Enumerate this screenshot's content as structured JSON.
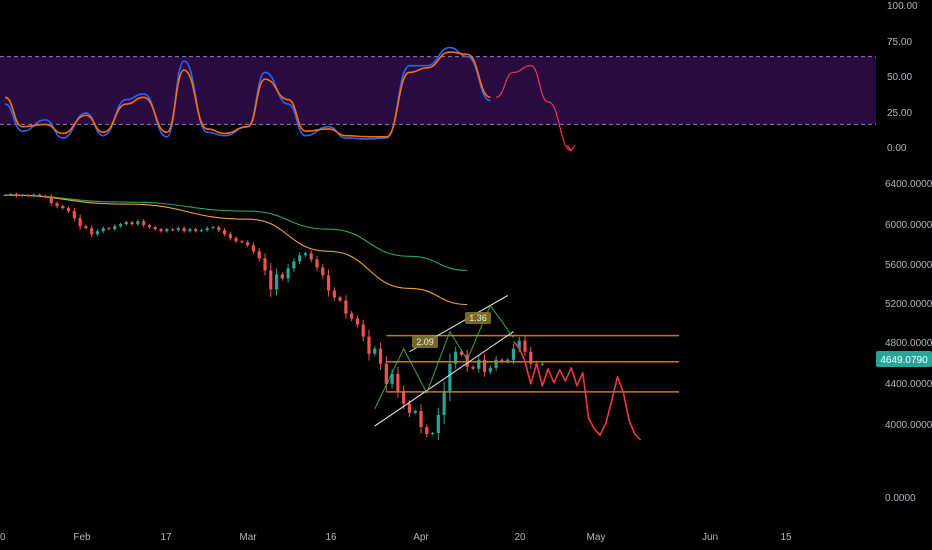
{
  "colors": {
    "background": "#000000",
    "rsi_band": "#2a0d45",
    "stoch_k": "#2962ff",
    "stoch_d": "#ff6d00",
    "projection": "#f23645",
    "candle_up": "#26a69a",
    "candle_down": "#ef5350",
    "ma_green": "#26a65b",
    "ma_orange": "#f0a030",
    "levels": "#c77b1d",
    "channel": "#e0e0e0",
    "pattern": "#4caf50",
    "price_label_bg": "#26a69a"
  },
  "chart_data": [
    {
      "type": "line",
      "panel": "stochastic oscillator",
      "ylim": [
        0,
        100
      ],
      "y_ticks": [
        "100.00",
        "75.00",
        "50.00",
        "25.00",
        "0.00"
      ],
      "band": [
        20,
        80
      ],
      "x_dates": [
        "2020-01-20",
        "2020-01-23",
        "2020-01-27",
        "2020-01-30",
        "2020-02-03",
        "2020-02-06",
        "2020-02-10",
        "2020-02-13",
        "2020-02-17",
        "2020-02-20",
        "2020-02-24",
        "2020-02-27",
        "2020-03-02",
        "2020-03-05",
        "2020-03-09",
        "2020-03-12",
        "2020-03-16",
        "2020-03-19",
        "2020-03-23",
        "2020-03-26",
        "2020-03-30",
        "2020-04-02",
        "2020-04-06",
        "2020-04-09",
        "2020-04-13"
      ],
      "series": [
        {
          "values": [
            38,
            14,
            24,
            8,
            30,
            10,
            42,
            47,
            9,
            76,
            13,
            10,
            18,
            66,
            38,
            10,
            18,
            8,
            7,
            8,
            72,
            72,
            88,
            80,
            41
          ]
        },
        {
          "values": [
            44,
            18,
            20,
            12,
            28,
            13,
            38,
            44,
            13,
            68,
            16,
            12,
            18,
            60,
            42,
            14,
            16,
            10,
            9,
            9,
            66,
            70,
            84,
            82,
            44
          ]
        }
      ],
      "projection": {
        "x": [
          "2020-04-14",
          "2020-04-17",
          "2020-04-20",
          "2020-04-23",
          "2020-04-27"
        ],
        "y": [
          44,
          66,
          72,
          40,
          -3
        ]
      }
    },
    {
      "type": "candlestick",
      "panel": "price",
      "ylim": [
        0,
        7200
      ],
      "y_ticks": [
        "6400.0000",
        "6000.0000",
        "5600.0000",
        "5200.0000",
        "4800.0000",
        "4400.0000",
        "4000.0000",
        "0.0000"
      ],
      "current_price": "4649.0790",
      "x_ticks": [
        "0",
        "Feb",
        "17",
        "Mar",
        "16",
        "Apr",
        "20",
        "May",
        "Jun",
        "15"
      ],
      "closes": [
        6280,
        6290,
        6270,
        6280,
        6270,
        6285,
        6270,
        6260,
        6200,
        6170,
        6150,
        6120,
        6050,
        5970,
        5950,
        5890,
        5920,
        5950,
        5940,
        5970,
        5990,
        6010,
        5990,
        6020,
        5980,
        5960,
        5940,
        5920,
        5940,
        5930,
        5950,
        5920,
        5940,
        5920,
        5930,
        5950,
        5960,
        5930,
        5890,
        5850,
        5820,
        5810,
        5780,
        5720,
        5650,
        5530,
        5340,
        5490,
        5450,
        5550,
        5620,
        5680,
        5700,
        5640,
        5560,
        5480,
        5330,
        5260,
        5230,
        5100,
        5050,
        4990,
        4870,
        4700,
        4750,
        4600,
        4400,
        4500,
        4330,
        4200,
        4110,
        4130,
        3970,
        3900,
        3910,
        4090,
        4330,
        4600,
        4720,
        4690,
        4570,
        4550,
        4640,
        4520,
        4560,
        4640,
        4620,
        4640,
        4750,
        4830,
        4720,
        4600,
        4590,
        4600
      ],
      "ma_long": {
        "x": [
          "2020-01-20",
          "2020-02-10",
          "2020-03-02",
          "2020-03-16",
          "2020-03-30",
          "2020-04-09"
        ],
        "y": [
          6280,
          6210,
          6120,
          5940,
          5670,
          5530
        ]
      },
      "ma_short": {
        "x": [
          "2020-01-20",
          "2020-02-10",
          "2020-03-02",
          "2020-03-16",
          "2020-03-30",
          "2020-04-09"
        ],
        "y": [
          6280,
          6190,
          6040,
          5720,
          5350,
          5190
        ]
      },
      "levels": [
        4880,
        4620,
        4320
      ],
      "channel_upper": {
        "x": [
          "2020-03-30",
          "2020-04-16"
        ],
        "y": [
          4720,
          5280
        ]
      },
      "channel_lower": {
        "x": [
          "2020-03-24",
          "2020-04-17"
        ],
        "y": [
          3980,
          4920
        ]
      },
      "pattern": {
        "x": [
          "2020-03-24",
          "2020-03-29",
          "2020-04-02",
          "2020-04-06",
          "2020-04-09",
          "2020-04-13",
          "2020-04-17"
        ],
        "y": [
          4150,
          4750,
          4310,
          4920,
          4640,
          5180,
          4860
        ]
      },
      "ratio_labels": [
        "2.09",
        "1.36"
      ],
      "projection": {
        "x": [
          "2020-04-17",
          "2020-04-18",
          "2020-04-19",
          "2020-04-20",
          "2020-04-21",
          "2020-04-22",
          "2020-04-23",
          "2020-04-24",
          "2020-04-25",
          "2020-04-26",
          "2020-04-27",
          "2020-04-28",
          "2020-04-29",
          "2020-04-30",
          "2020-05-01",
          "2020-05-02",
          "2020-05-03",
          "2020-05-04",
          "2020-05-05",
          "2020-05-06",
          "2020-05-07",
          "2020-05-08",
          "2020-05-09"
        ],
        "y": [
          4820,
          4760,
          4620,
          4400,
          4600,
          4380,
          4550,
          4410,
          4540,
          4430,
          4560,
          4380,
          4510,
          4060,
          3950,
          3890,
          4010,
          4230,
          4470,
          4320,
          4040,
          3900,
          3840
        ]
      }
    }
  ]
}
